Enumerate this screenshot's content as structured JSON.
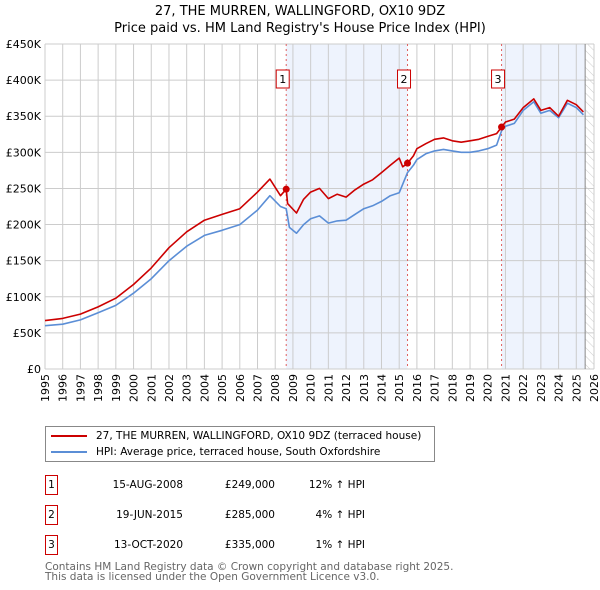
{
  "chart_data": {
    "type": "line",
    "title": "27, THE MURREN, WALLINGFORD, OX10 9DZ",
    "subtitle": "Price paid vs. HM Land Registry's House Price Index (HPI)",
    "xlim": [
      1995,
      2026
    ],
    "ylim": [
      0,
      450000
    ],
    "x_ticks": [
      1995,
      1996,
      1997,
      1998,
      1999,
      2000,
      2001,
      2002,
      2003,
      2004,
      2005,
      2006,
      2007,
      2008,
      2009,
      2010,
      2011,
      2012,
      2013,
      2014,
      2015,
      2016,
      2017,
      2018,
      2019,
      2020,
      2021,
      2022,
      2023,
      2024,
      2025,
      2026
    ],
    "y_ticks": [
      {
        "v": 0,
        "label": "£0"
      },
      {
        "v": 50000,
        "label": "£50K"
      },
      {
        "v": 100000,
        "label": "£100K"
      },
      {
        "v": 150000,
        "label": "£150K"
      },
      {
        "v": 200000,
        "label": "£200K"
      },
      {
        "v": 250000,
        "label": "£250K"
      },
      {
        "v": 300000,
        "label": "£300K"
      },
      {
        "v": 350000,
        "label": "£350K"
      },
      {
        "v": 400000,
        "label": "£400K"
      },
      {
        "v": 450000,
        "label": "£450K"
      }
    ],
    "grid": true,
    "series": [
      {
        "name": "27, THE MURREN, WALLINGFORD, OX10 9DZ (terraced house)",
        "color": "#cc0000",
        "x": [
          1995,
          1996,
          1997,
          1998,
          1999,
          2000,
          2001,
          2002,
          2003,
          2004,
          2005,
          2006,
          2007,
          2007.7,
          2008.3,
          2008.62,
          2008.7,
          2009.2,
          2009.6,
          2010,
          2010.5,
          2011,
          2011.5,
          2012,
          2012.5,
          2013,
          2013.5,
          2014,
          2014.5,
          2015,
          2015.2,
          2015.47,
          2015.8,
          2016,
          2016.5,
          2017,
          2017.5,
          2018,
          2018.5,
          2019,
          2019.5,
          2020,
          2020.5,
          2020.78,
          2021,
          2021.5,
          2022,
          2022.6,
          2023,
          2023.5,
          2024,
          2024.5,
          2025,
          2025.4
        ],
        "y": [
          67000,
          70000,
          76000,
          86000,
          98000,
          117000,
          140000,
          168000,
          190000,
          206000,
          214000,
          222000,
          245000,
          263000,
          240000,
          249000,
          229000,
          216000,
          235000,
          245000,
          250000,
          236000,
          242000,
          238000,
          248000,
          256000,
          262000,
          272000,
          282000,
          292000,
          280000,
          285000,
          295000,
          305000,
          312000,
          318000,
          320000,
          316000,
          314000,
          316000,
          318000,
          322000,
          326000,
          335000,
          342000,
          346000,
          362000,
          374000,
          358000,
          362000,
          350000,
          372000,
          366000,
          356000
        ]
      },
      {
        "name": "HPI: Average price, terraced house, South Oxfordshire",
        "color": "#5b8ed6",
        "x": [
          1995,
          1996,
          1997,
          1998,
          1999,
          2000,
          2001,
          2002,
          2003,
          2004,
          2005,
          2006,
          2007,
          2007.7,
          2008.3,
          2008.62,
          2008.8,
          2009.2,
          2009.6,
          2010,
          2010.5,
          2011,
          2011.5,
          2012,
          2012.5,
          2013,
          2013.5,
          2014,
          2014.5,
          2015,
          2015.47,
          2015.8,
          2016,
          2016.5,
          2017,
          2017.5,
          2018,
          2018.5,
          2019,
          2019.5,
          2020,
          2020.5,
          2020.78,
          2021,
          2021.5,
          2022,
          2022.6,
          2023,
          2023.5,
          2024,
          2024.5,
          2025,
          2025.4
        ],
        "y": [
          60000,
          62000,
          68000,
          78000,
          88000,
          105000,
          125000,
          150000,
          170000,
          185000,
          192000,
          200000,
          220000,
          240000,
          225000,
          222000,
          196000,
          188000,
          200000,
          208000,
          212000,
          202000,
          205000,
          206000,
          214000,
          222000,
          226000,
          232000,
          240000,
          244000,
          272000,
          282000,
          290000,
          298000,
          302000,
          304000,
          302000,
          300000,
          300000,
          302000,
          305000,
          310000,
          330000,
          336000,
          340000,
          358000,
          370000,
          354000,
          358000,
          348000,
          368000,
          362000,
          352000
        ]
      }
    ],
    "sales": [
      {
        "id": "1",
        "x": 2008.62,
        "y": 249000,
        "date": "15-AUG-2008",
        "price": "£249,000",
        "hpi": "12% ↑ HPI"
      },
      {
        "id": "2",
        "x": 2015.47,
        "y": 285000,
        "date": "19-JUN-2015",
        "price": "£285,000",
        "hpi": "4% ↑ HPI"
      },
      {
        "id": "3",
        "x": 2020.78,
        "y": 335000,
        "date": "13-OCT-2020",
        "price": "£335,000",
        "hpi": "1% ↑ HPI"
      }
    ],
    "data_end": 2025.5,
    "legend_position": "below"
  },
  "footer": {
    "line1": "Contains HM Land Registry data © Crown copyright and database right 2025.",
    "line2": "This data is licensed under the Open Government Licence v3.0."
  }
}
